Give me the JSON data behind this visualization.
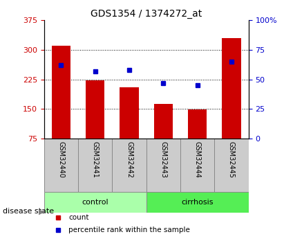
{
  "title": "GDS1354 / 1374272_at",
  "samples": [
    "GSM32440",
    "GSM32441",
    "GSM32442",
    "GSM32443",
    "GSM32444",
    "GSM32445"
  ],
  "bar_values": [
    310,
    222,
    205,
    163,
    148,
    330
  ],
  "percentile_values": [
    62,
    57,
    58,
    47,
    45,
    65
  ],
  "bar_color": "#cc0000",
  "dot_color": "#0000cc",
  "ylim_left": [
    75,
    375
  ],
  "ylim_right": [
    0,
    100
  ],
  "yticks_left": [
    75,
    150,
    225,
    300,
    375
  ],
  "yticks_right": [
    0,
    25,
    50,
    75,
    100
  ],
  "ytick_labels_right": [
    "0",
    "25",
    "50",
    "75",
    "100%"
  ],
  "ytick_labels_left": [
    "75",
    "150",
    "225",
    "300",
    "375"
  ],
  "gridlines_at": [
    150,
    225,
    300
  ],
  "groups": [
    {
      "label": "control",
      "indices": [
        0,
        1,
        2
      ],
      "color": "#aaffaa"
    },
    {
      "label": "cirrhosis",
      "indices": [
        3,
        4,
        5
      ],
      "color": "#55ee55"
    }
  ],
  "disease_state_label": "disease state",
  "legend_items": [
    {
      "label": "count",
      "color": "#cc0000"
    },
    {
      "label": "percentile rank within the sample",
      "color": "#0000cc"
    }
  ],
  "background_color": "#ffffff",
  "tick_label_color_left": "#cc0000",
  "tick_label_color_right": "#0000cc",
  "bar_bottom": 75,
  "cell_color": "#cccccc",
  "cell_edge_color": "#888888"
}
